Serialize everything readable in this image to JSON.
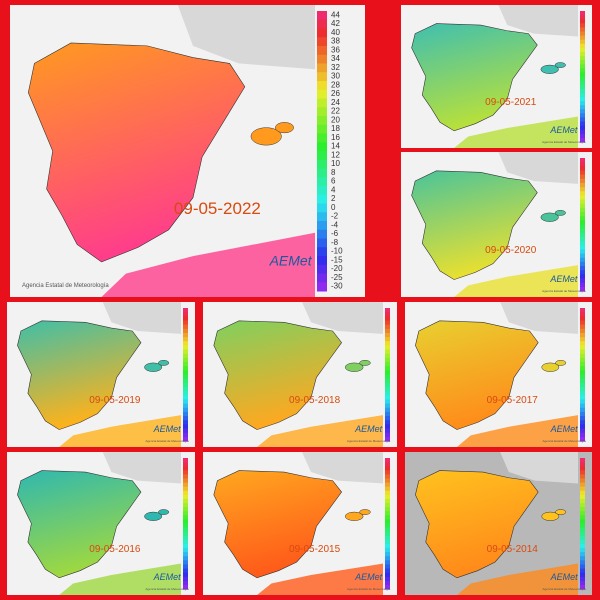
{
  "agency": "Agencia Estatal de Meteorología",
  "logo": "AEMet",
  "scale": [
    44,
    42,
    40,
    38,
    36,
    34,
    32,
    30,
    28,
    26,
    24,
    22,
    20,
    18,
    16,
    14,
    12,
    10,
    8,
    6,
    4,
    2,
    0,
    -2,
    -4,
    -6,
    -8,
    -10,
    -15,
    -20,
    -25,
    -30
  ],
  "panels": [
    {
      "date": "09-05-2022",
      "colors": [
        "#ff9a1f",
        "#ff3d8b"
      ]
    },
    {
      "date": "09-05-2021",
      "colors": [
        "#3fbfb0",
        "#b8e03a"
      ]
    },
    {
      "date": "09-05-2020",
      "colors": [
        "#49c49a",
        "#e8e030"
      ]
    },
    {
      "date": "09-05-2019",
      "colors": [
        "#3fbfa8",
        "#ffb21a"
      ]
    },
    {
      "date": "09-05-2018",
      "colors": [
        "#7fd060",
        "#ffa820"
      ]
    },
    {
      "date": "09-05-2017",
      "colors": [
        "#e8d030",
        "#ff8c1a"
      ]
    },
    {
      "date": "09-05-2016",
      "colors": [
        "#2fb8b0",
        "#9fd840"
      ]
    },
    {
      "date": "09-05-2015",
      "colors": [
        "#ffa81f",
        "#ff5a1a"
      ]
    },
    {
      "date": "09-05-2014",
      "colors": [
        "#ffc21f",
        "#ff8a1a"
      ]
    }
  ]
}
